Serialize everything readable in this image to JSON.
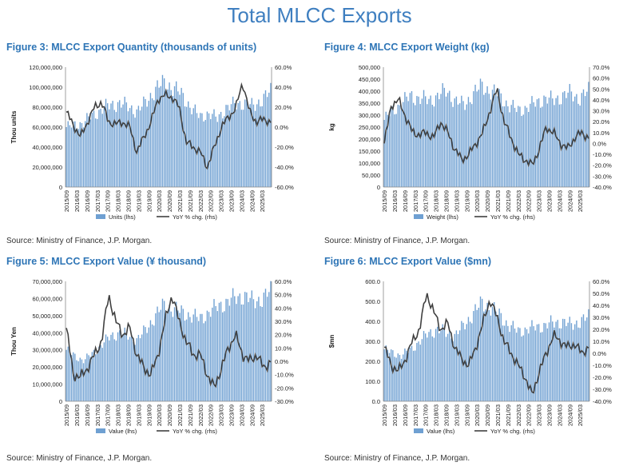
{
  "page": {
    "title": "Total MLCC Exports"
  },
  "colors": {
    "bar": "#6fa0d2",
    "line": "#404040",
    "title": "#2e75b6",
    "axis": "#888888"
  },
  "figures": [
    {
      "title": "Figure 3: MLCC Export Quantity (thousands of units)",
      "source": "Source: Ministry of Finance, J.P. Morgan.",
      "ylabel": "Thou units",
      "left_ticks": [
        "0",
        "20,000,000",
        "40,000,000",
        "60,000,000",
        "80,000,000",
        "100,000,000",
        "120,000,000"
      ],
      "right_ticks": [
        "-60.0%",
        "-40.0%",
        "-20.0%",
        "0.0%",
        "20.0%",
        "40.0%",
        "60.0%"
      ],
      "x_ticks": [
        "2015/09",
        "2016/03",
        "2016/09",
        "2017/03",
        "2017/09",
        "2018/03",
        "2018/09",
        "2019/03",
        "2019/09",
        "2020/03",
        "2020/09",
        "2021/03",
        "2021/09",
        "2022/03",
        "2022/09",
        "2023/03",
        "2023/09",
        "2024/03",
        "2024/09",
        "2025/03"
      ],
      "legend": {
        "bar": "Units (lhs)",
        "line": "YoY % chg. (rhs)"
      },
      "chart_data": {
        "type": "bar+line",
        "categories_start": "2015/09",
        "ylim_left": [
          0,
          120000000
        ],
        "ylim_right": [
          -60,
          60
        ],
        "bar_anchors": [
          60000000,
          62000000,
          65000000,
          72000000,
          78000000,
          82000000,
          84000000,
          80000000,
          76000000,
          85000000,
          98000000,
          104000000,
          100000000,
          92000000,
          80000000,
          70000000,
          74000000,
          68000000,
          80000000,
          82000000,
          85000000,
          80000000,
          88000000,
          95000000
        ],
        "line_anchors": [
          15,
          2,
          -10,
          5,
          20,
          25,
          5,
          3,
          5,
          0,
          -25,
          -10,
          5,
          28,
          32,
          30,
          20,
          -15,
          -20,
          -25,
          -40,
          -20,
          0,
          10,
          18,
          45,
          15,
          5,
          8,
          5
        ]
      }
    },
    {
      "title": "Figure 4: MLCC Export Weight (kg)",
      "source": "Source: Ministry of Finance, J.P. Morgan.",
      "ylabel": "kg",
      "left_ticks": [
        "0",
        "50,000",
        "100,000",
        "150,000",
        "200,000",
        "250,000",
        "300,000",
        "350,000",
        "400,000",
        "450,000",
        "500,000"
      ],
      "right_ticks": [
        "-40.0%",
        "-30.0%",
        "-20.0%",
        "-10.0%",
        "0.0%",
        "10.0%",
        "20.0%",
        "30.0%",
        "40.0%",
        "50.0%",
        "60.0%",
        "70.0%"
      ],
      "x_ticks": [
        "2015/09",
        "2016/03",
        "2016/09",
        "2017/03",
        "2017/09",
        "2018/03",
        "2018/09",
        "2019/03",
        "2019/09",
        "2020/03",
        "2020/09",
        "2021/03",
        "2021/09",
        "2022/03",
        "2022/09",
        "2023/03",
        "2023/09",
        "2024/03",
        "2024/09",
        "2025/03"
      ],
      "legend": {
        "bar": "Weight (lhs)",
        "line": "YoY % chg. (rhs)"
      },
      "chart_data": {
        "type": "bar+line",
        "categories_start": "2015/09",
        "ylim_left": [
          0,
          500000
        ],
        "ylim_right": [
          -40,
          70
        ],
        "bar_anchors": [
          280000,
          320000,
          350000,
          380000,
          370000,
          360000,
          380000,
          400000,
          360000,
          340000,
          390000,
          420000,
          400000,
          380000,
          340000,
          320000,
          330000,
          350000,
          370000,
          360000,
          380000,
          390000,
          370000,
          400000
        ],
        "line_anchors": [
          0,
          35,
          40,
          25,
          10,
          8,
          10,
          5,
          20,
          10,
          -5,
          -15,
          -10,
          0,
          10,
          30,
          50,
          20,
          5,
          -10,
          -15,
          -20,
          -5,
          15,
          10,
          0,
          -5,
          5,
          10,
          5
        ]
      }
    },
    {
      "title": "Figure 5: MLCC Export Value (¥ thousand)",
      "source": "Source: Ministry of Finance, J.P. Morgan.",
      "ylabel": "Thou Yen",
      "left_ticks": [
        "0",
        "10,000,000",
        "20,000,000",
        "30,000,000",
        "40,000,000",
        "50,000,000",
        "60,000,000",
        "70,000,000"
      ],
      "right_ticks": [
        "-30.0%",
        "-20.0%",
        "-10.0%",
        "0.0%",
        "10.0%",
        "20.0%",
        "30.0%",
        "40.0%",
        "50.0%",
        "60.0%"
      ],
      "x_ticks": [
        "2015/09",
        "2016/03",
        "2016/09",
        "2017/03",
        "2017/09",
        "2018/03",
        "2018/09",
        "2019/03",
        "2019/09",
        "2020/03",
        "2020/09",
        "2021/03",
        "2021/09",
        "2022/03",
        "2022/09",
        "2023/03",
        "2023/09",
        "2024/03",
        "2024/09",
        "2025/03"
      ],
      "legend": {
        "bar": "Value (lhs)",
        "line": "YoY % chg. (rhs)"
      },
      "chart_data": {
        "type": "bar+line",
        "categories_start": "2015/09",
        "ylim_left": [
          0,
          70000000
        ],
        "ylim_right": [
          -30,
          60
        ],
        "bar_anchors": [
          30000000,
          26000000,
          24000000,
          28000000,
          33000000,
          38000000,
          40000000,
          38000000,
          36000000,
          42000000,
          50000000,
          56000000,
          54000000,
          52000000,
          50000000,
          48000000,
          52000000,
          55000000,
          58000000,
          60000000,
          62000000,
          58000000,
          60000000,
          64000000
        ],
        "line_anchors": [
          25,
          -10,
          -12,
          -5,
          5,
          15,
          50,
          30,
          20,
          25,
          5,
          -5,
          -10,
          5,
          30,
          50,
          30,
          15,
          5,
          5,
          -10,
          -20,
          -5,
          10,
          20,
          5,
          0,
          5,
          -5,
          0
        ]
      }
    },
    {
      "title": "Figure 6: MLCC Export Value ($mn)",
      "source": "Source: Ministry of Finance, J.P. Morgan.",
      "ylabel": "$mn",
      "left_ticks": [
        "0.0",
        "100.0",
        "200.0",
        "300.0",
        "400.0",
        "500.0",
        "600.0"
      ],
      "right_ticks": [
        "-40.0%",
        "-30.0%",
        "-20.0%",
        "-10.0%",
        "0.0%",
        "10.0%",
        "20.0%",
        "30.0%",
        "40.0%",
        "50.0%",
        "60.0%"
      ],
      "x_ticks": [
        "2015/09",
        "2016/03",
        "2016/09",
        "2017/03",
        "2017/09",
        "2018/03",
        "2018/09",
        "2019/03",
        "2019/09",
        "2020/03",
        "2020/09",
        "2021/03",
        "2021/09",
        "2022/03",
        "2022/09",
        "2023/03",
        "2023/09",
        "2024/03",
        "2024/09",
        "2025/03"
      ],
      "legend": {
        "bar": "Value (lhs)",
        "line": "YoY % chg. (rhs)"
      },
      "chart_data": {
        "type": "bar+line",
        "categories_start": "2015/09",
        "ylim_left": [
          0,
          600
        ],
        "ylim_right": [
          -40,
          60
        ],
        "bar_anchors": [
          260,
          240,
          230,
          260,
          300,
          340,
          360,
          340,
          330,
          380,
          440,
          490,
          470,
          430,
          380,
          350,
          360,
          370,
          380,
          390,
          400,
          380,
          400,
          420
        ],
        "line_anchors": [
          5,
          -10,
          -15,
          -5,
          10,
          20,
          50,
          35,
          20,
          25,
          5,
          -5,
          -10,
          5,
          25,
          45,
          30,
          10,
          0,
          -10,
          -20,
          -35,
          -15,
          0,
          15,
          10,
          5,
          8,
          0,
          5
        ]
      }
    }
  ]
}
